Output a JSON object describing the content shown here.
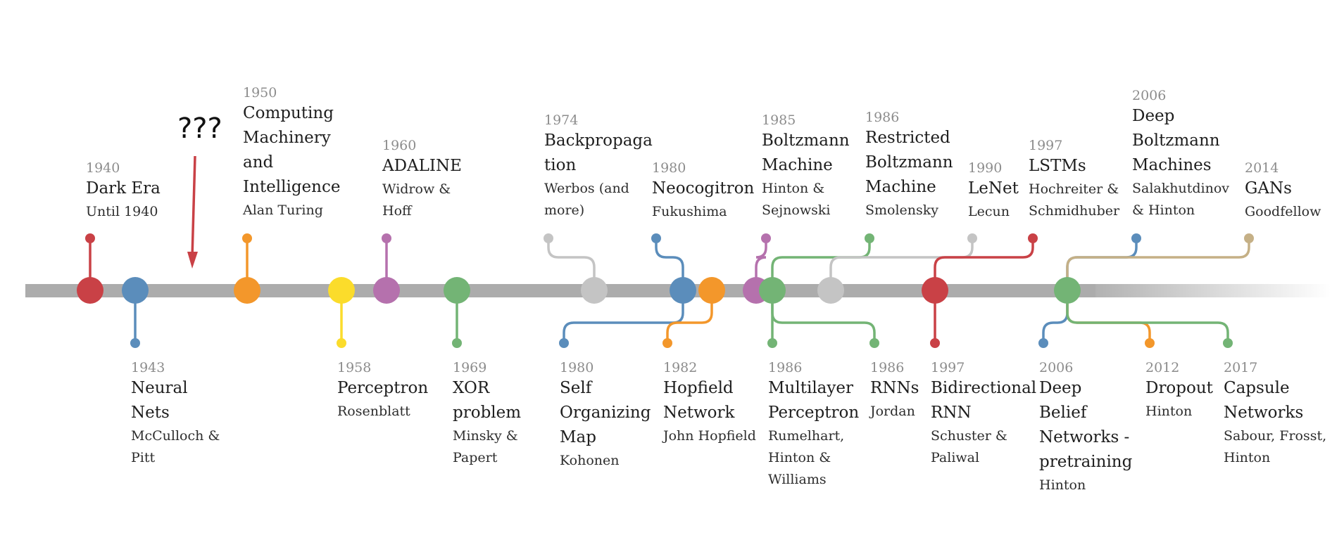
{
  "annotation": "???",
  "colors": {
    "red": "#c94146",
    "blue": "#5b8dbb",
    "orange": "#f3972b",
    "yellow": "#fbdc2b",
    "purple": "#b571ad",
    "green": "#73b475",
    "gray": "#c4c4c4",
    "tan": "#c5b086",
    "axis": "#acacac"
  },
  "events": [
    {
      "id": "dark-era",
      "year": "1940",
      "title": "Dark Era",
      "author": "Until 1940",
      "color": "red"
    },
    {
      "id": "neural-nets",
      "year": "1943",
      "title": "Neural Nets",
      "author": "McCulloch & Pitt",
      "color": "blue"
    },
    {
      "id": "computing-machinery",
      "year": "1950",
      "title": "Computing Machinery and Intelligence",
      "author": "Alan Turing",
      "color": "orange"
    },
    {
      "id": "perceptron",
      "year": "1958",
      "title": "Perceptron",
      "author": "Rosenblatt",
      "color": "yellow"
    },
    {
      "id": "adaline",
      "year": "1960",
      "title": "ADALINE",
      "author": "Widrow & Hoff",
      "color": "purple"
    },
    {
      "id": "xor-problem",
      "year": "1969",
      "title": "XOR problem",
      "author": "Minsky & Papert",
      "color": "green"
    },
    {
      "id": "backpropagation",
      "year": "1974",
      "title": "Backpropaga tion",
      "author": "Werbos (and more)",
      "color": "gray"
    },
    {
      "id": "neocogitron",
      "year": "1980",
      "title": "Neocogitron",
      "author": "Fukushima",
      "color": "blue"
    },
    {
      "id": "som",
      "year": "1980",
      "title": "Self Organizing Map",
      "author": "Kohonen",
      "color": "blue"
    },
    {
      "id": "hopfield",
      "year": "1982",
      "title": "Hopfield Network",
      "author": "John Hopfield",
      "color": "orange"
    },
    {
      "id": "boltzmann",
      "year": "1985",
      "title": "Boltzmann Machine",
      "author": "Hinton & Sejnowski",
      "color": "purple"
    },
    {
      "id": "rbm",
      "year": "1986",
      "title": "Restricted Boltzmann Machine",
      "author": "Smolensky",
      "color": "green"
    },
    {
      "id": "mlp",
      "year": "1986",
      "title": "Multilayer Perceptron",
      "author": "Rumelhart, Hinton & Williams",
      "color": "green"
    },
    {
      "id": "rnns",
      "year": "1986",
      "title": "RNNs",
      "author": "Jordan",
      "color": "green"
    },
    {
      "id": "lenet",
      "year": "1990",
      "title": "LeNet",
      "author": "Lecun",
      "color": "gray"
    },
    {
      "id": "lstms",
      "year": "1997",
      "title": "LSTMs",
      "author": "Hochreiter & Schmidhuber",
      "color": "red"
    },
    {
      "id": "birnn",
      "year": "1997",
      "title": "Bidirectional RNN",
      "author": "Schuster & Paliwal",
      "color": "red"
    },
    {
      "id": "dbm",
      "year": "2006",
      "title": "Deep Boltzmann Machines",
      "author": "Salakhutdinov & Hinton",
      "color": "blue"
    },
    {
      "id": "dbn",
      "year": "2006",
      "title": "Deep Belief Networks - pretraining",
      "author": "Hinton",
      "color": "blue"
    },
    {
      "id": "dropout",
      "year": "2012",
      "title": "Dropout",
      "author": "Hinton",
      "color": "orange"
    },
    {
      "id": "gans",
      "year": "2014",
      "title": "GANs",
      "author": "Goodfellow",
      "color": "tan"
    },
    {
      "id": "capsule",
      "year": "2017",
      "title": "Capsule Networks",
      "author": "Sabour, Frosst, Hinton",
      "color": "green"
    }
  ]
}
